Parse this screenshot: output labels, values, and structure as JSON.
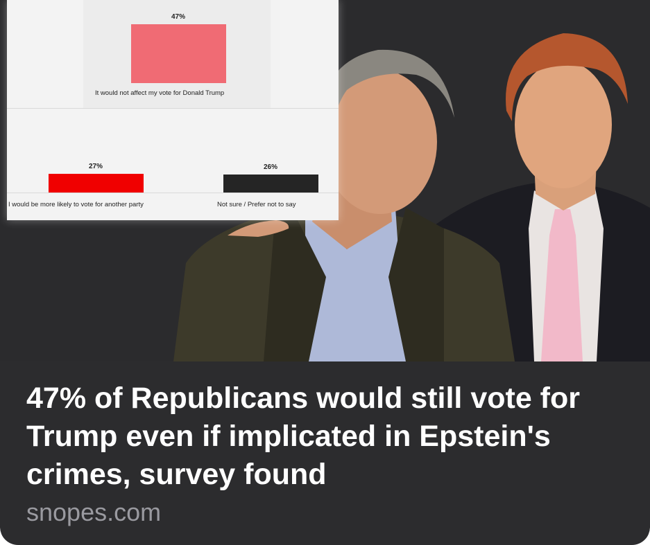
{
  "post": {
    "headline": "47% of Republicans would still vote for Trump even if implicated in Epstein's crimes, survey found",
    "source": "snopes.com"
  },
  "chart_data": {
    "type": "bar",
    "categories": [
      "It would not affect my vote for Donald Trump",
      "I would be more likely to vote for another party",
      "Not sure / Prefer not to say"
    ],
    "values": [
      47,
      27,
      26
    ],
    "value_labels": [
      "47%",
      "27%",
      "26%"
    ],
    "colors": [
      "#f06b74",
      "#f00000",
      "#252525"
    ],
    "grid": false
  },
  "colors": {
    "card_background": "#2c2c2e",
    "headline": "#ffffff",
    "source": "#9a9aa0"
  }
}
